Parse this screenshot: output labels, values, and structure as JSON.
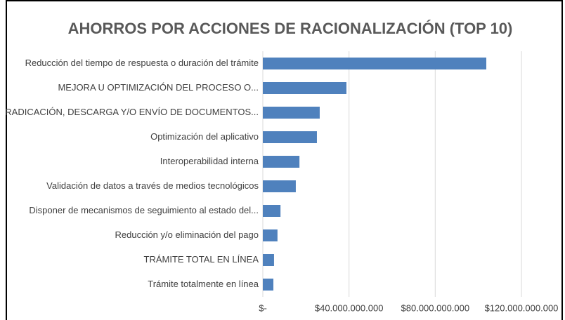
{
  "chart_data": {
    "type": "barh",
    "title": "AHORROS POR ACCIONES DE RACIONALIZACIÓN (TOP 10)",
    "categories": [
      "Reducción del tiempo de respuesta o duración del trámite",
      "MEJORA U OPTIMIZACIÓN DEL PROCESO O...",
      "RADICACIÓN, DESCARGA Y/O ENVÍO DE DOCUMENTOS...",
      "Optimización del aplicativo",
      "Interoperabilidad interna",
      "Validación de datos a través de medios tecnológicos",
      "Disponer de mecanismos de seguimiento al estado del...",
      "Reducción y/o eliminación del pago",
      "TRÁMITE TOTAL EN LÍNEA",
      "Trámite totalmente en línea"
    ],
    "values": [
      103700000000,
      38800000000,
      26400000000,
      25100000000,
      17000000000,
      15300000000,
      8200000000,
      6800000000,
      5200000000,
      4900000000
    ],
    "color": "#4f81bd",
    "xlim": [
      0,
      120000000000
    ],
    "xticks": [
      {
        "value": 0,
        "label": "$-"
      },
      {
        "value": 40000000000,
        "label": "$40.000.000.000"
      },
      {
        "value": 80000000000,
        "label": "$80.000.000.000"
      },
      {
        "value": 120000000000,
        "label": "$120.000.000.000"
      }
    ],
    "grid": true
  }
}
